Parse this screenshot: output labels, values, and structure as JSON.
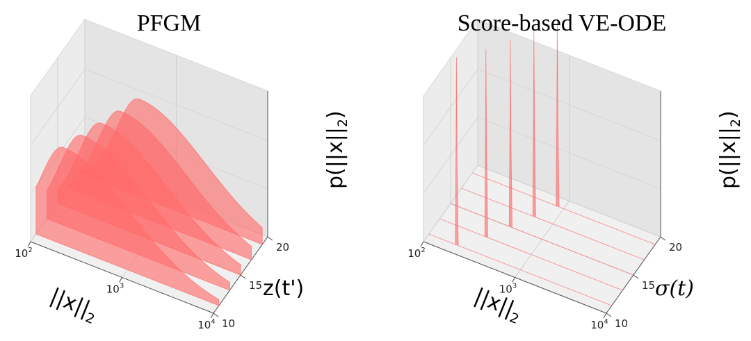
{
  "chart_data": [
    {
      "type": "area",
      "projection": "3d",
      "title": "PFGM",
      "xlabel": "||x||",
      "xlabel_sub": "2",
      "ylabel": "z(t')",
      "zlabel": "p(||x||",
      "zlabel_sub": "2",
      "zlabel_close": ")",
      "x_scale": "log",
      "xlim": [
        100,
        10000
      ],
      "ylim": [
        10,
        20
      ],
      "x_ticks": [
        {
          "base": "10",
          "exp": "2",
          "value": 100
        },
        {
          "base": "10",
          "exp": "3",
          "value": 1000
        },
        {
          "base": "10",
          "exp": "4",
          "value": 10000
        }
      ],
      "y_ticks": [
        "10",
        "15",
        "20"
      ],
      "grid": true,
      "color": "#ff6b6b",
      "series": [
        {
          "y": 11,
          "peak_x": 200,
          "width_decades": 0.45
        },
        {
          "y": 13,
          "peak_x": 245,
          "width_decades": 0.45
        },
        {
          "y": 15,
          "peak_x": 300,
          "width_decades": 0.45
        },
        {
          "y": 17,
          "peak_x": 370,
          "width_decades": 0.45
        },
        {
          "y": 19,
          "peak_x": 450,
          "width_decades": 0.45
        }
      ]
    },
    {
      "type": "area",
      "projection": "3d",
      "title": "Score-based VE-ODE",
      "xlabel": "||x||",
      "xlabel_sub": "2",
      "ylabel": "σ(t)",
      "zlabel": "p(||x||",
      "zlabel_sub": "2",
      "zlabel_close": ")",
      "x_scale": "log",
      "xlim": [
        100,
        10000
      ],
      "ylim": [
        10,
        20
      ],
      "x_ticks": [
        {
          "base": "10",
          "exp": "2",
          "value": 100
        },
        {
          "base": "10",
          "exp": "3",
          "value": 1000
        },
        {
          "base": "10",
          "exp": "4",
          "value": 10000
        }
      ],
      "y_ticks": [
        "10",
        "15",
        "20"
      ],
      "grid": true,
      "color": "#ff6b6b",
      "series": [
        {
          "y": 11,
          "peak_x": 200,
          "width_decades": 0.004
        },
        {
          "y": 13,
          "peak_x": 320,
          "width_decades": 0.004
        },
        {
          "y": 15,
          "peak_x": 450,
          "width_decades": 0.004
        },
        {
          "y": 17,
          "peak_x": 620,
          "width_decades": 0.004
        },
        {
          "y": 19,
          "peak_x": 850,
          "width_decades": 0.004
        }
      ]
    }
  ]
}
